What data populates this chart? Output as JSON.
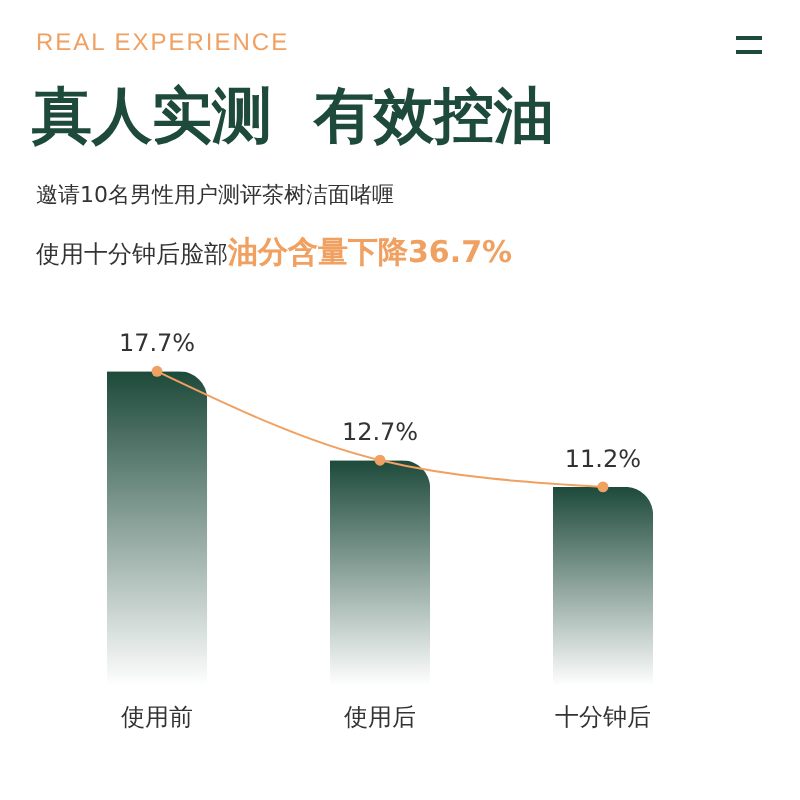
{
  "chart_data": {
    "type": "bar",
    "title": "真人实测  有效控油",
    "subtitle": "邀请10名男性用户测评茶树洁面啫喱",
    "annotations": [
      "REAL EXPERIENCE",
      "使用十分钟后脸部",
      "油分含量下降36.7%"
    ],
    "categories": [
      "使用前",
      "使用后",
      "十分钟后"
    ],
    "series": [
      {
        "color": "#1d4a3a",
        "values": [
          17.7,
          12.7,
          11.2
        ]
      },
      {
        "type": "line",
        "color": "#f0a060",
        "values": [
          17.7,
          12.7,
          11.2
        ],
        "value_labels": [
          "17.7%",
          "12.7%",
          "11.2%"
        ]
      }
    ],
    "marker": "circle",
    "grid": false,
    "tick_labels": "x"
  }
}
